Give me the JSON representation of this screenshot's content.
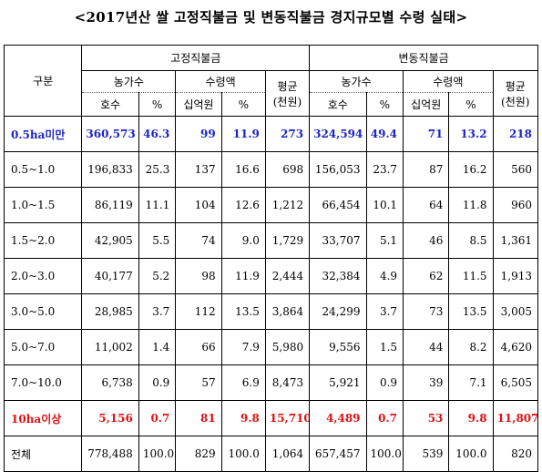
{
  "title": "<2017년산 쌀 고정직불금 및 변동직불금 경지규모별 수령 실태>",
  "header": {
    "category": "구분",
    "fixed_group": "고정직불금",
    "variable_group": "변동직불금",
    "farms": "농가수",
    "amount": "수령액",
    "average": "평균",
    "average_unit": "(천원)",
    "households": "호수",
    "percent": "%",
    "billion_won": "십억원"
  },
  "colors": {
    "highlight_blue": "#1a23c8",
    "highlight_red": "#e01010"
  },
  "rows": [
    {
      "label": "0.5ha미만",
      "style": "blue",
      "cells": [
        "360,573",
        "46.3",
        "99",
        "11.9",
        "273",
        "324,594",
        "49.4",
        "71",
        "13.2",
        "218"
      ]
    },
    {
      "label": "0.5~1.0",
      "style": "",
      "cells": [
        "196,833",
        "25.3",
        "137",
        "16.6",
        "698",
        "156,053",
        "23.7",
        "87",
        "16.2",
        "560"
      ]
    },
    {
      "label": "1.0~1.5",
      "style": "",
      "cells": [
        "86,119",
        "11.1",
        "104",
        "12.6",
        "1,212",
        "66,454",
        "10.1",
        "64",
        "11.8",
        "960"
      ]
    },
    {
      "label": "1.5~2.0",
      "style": "",
      "cells": [
        "42,905",
        "5.5",
        "74",
        "9.0",
        "1,729",
        "33,707",
        "5.1",
        "46",
        "8.5",
        "1,361"
      ]
    },
    {
      "label": "2.0~3.0",
      "style": "",
      "cells": [
        "40,177",
        "5.2",
        "98",
        "11.9",
        "2,444",
        "32,384",
        "4.9",
        "62",
        "11.5",
        "1,913"
      ]
    },
    {
      "label": "3.0~5.0",
      "style": "",
      "cells": [
        "28,985",
        "3.7",
        "112",
        "13.5",
        "3,864",
        "24,299",
        "3.7",
        "73",
        "13.5",
        "3,005"
      ]
    },
    {
      "label": "5.0~7.0",
      "style": "",
      "cells": [
        "11,002",
        "1.4",
        "66",
        "7.9",
        "5,980",
        "9,556",
        "1.5",
        "44",
        "8.2",
        "4,620"
      ]
    },
    {
      "label": "7.0~10.0",
      "style": "",
      "cells": [
        "6,738",
        "0.9",
        "57",
        "6.9",
        "8,473",
        "5,921",
        "0.9",
        "39",
        "7.1",
        "6,505"
      ]
    },
    {
      "label": "10ha이상",
      "style": "red",
      "cells": [
        "5,156",
        "0.7",
        "81",
        "9.8",
        "15,710",
        "4,489",
        "0.7",
        "53",
        "9.8",
        "11,807"
      ]
    },
    {
      "label": "전체",
      "style": "",
      "cells": [
        "778,488",
        "100.0",
        "829",
        "100.0",
        "1,064",
        "657,457",
        "100.0",
        "539",
        "100.0",
        "820"
      ]
    }
  ]
}
